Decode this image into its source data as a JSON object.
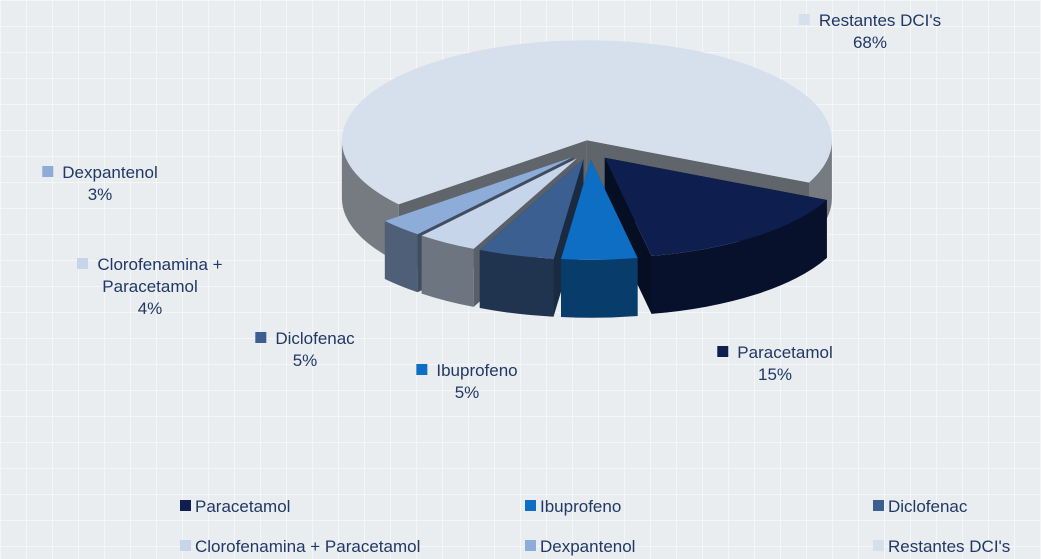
{
  "chart_data": {
    "type": "pie3d",
    "categories": [
      "Paracetamol",
      "Ibuprofeno",
      "Diclofenac",
      "Clorofenamina + Paracetamol",
      "Dexpantenol",
      "Restantes DCI's"
    ],
    "values": [
      15,
      5,
      5,
      4,
      3,
      68
    ],
    "value_labels": [
      "15%",
      "5%",
      "5%",
      "4%",
      "3%",
      "68%"
    ],
    "colors": [
      "#0e1f4f",
      "#0e6ec3",
      "#3a5f90",
      "#c6d5e9",
      "#8eacd8",
      "#d6e0ed"
    ],
    "legend": "bottom"
  }
}
